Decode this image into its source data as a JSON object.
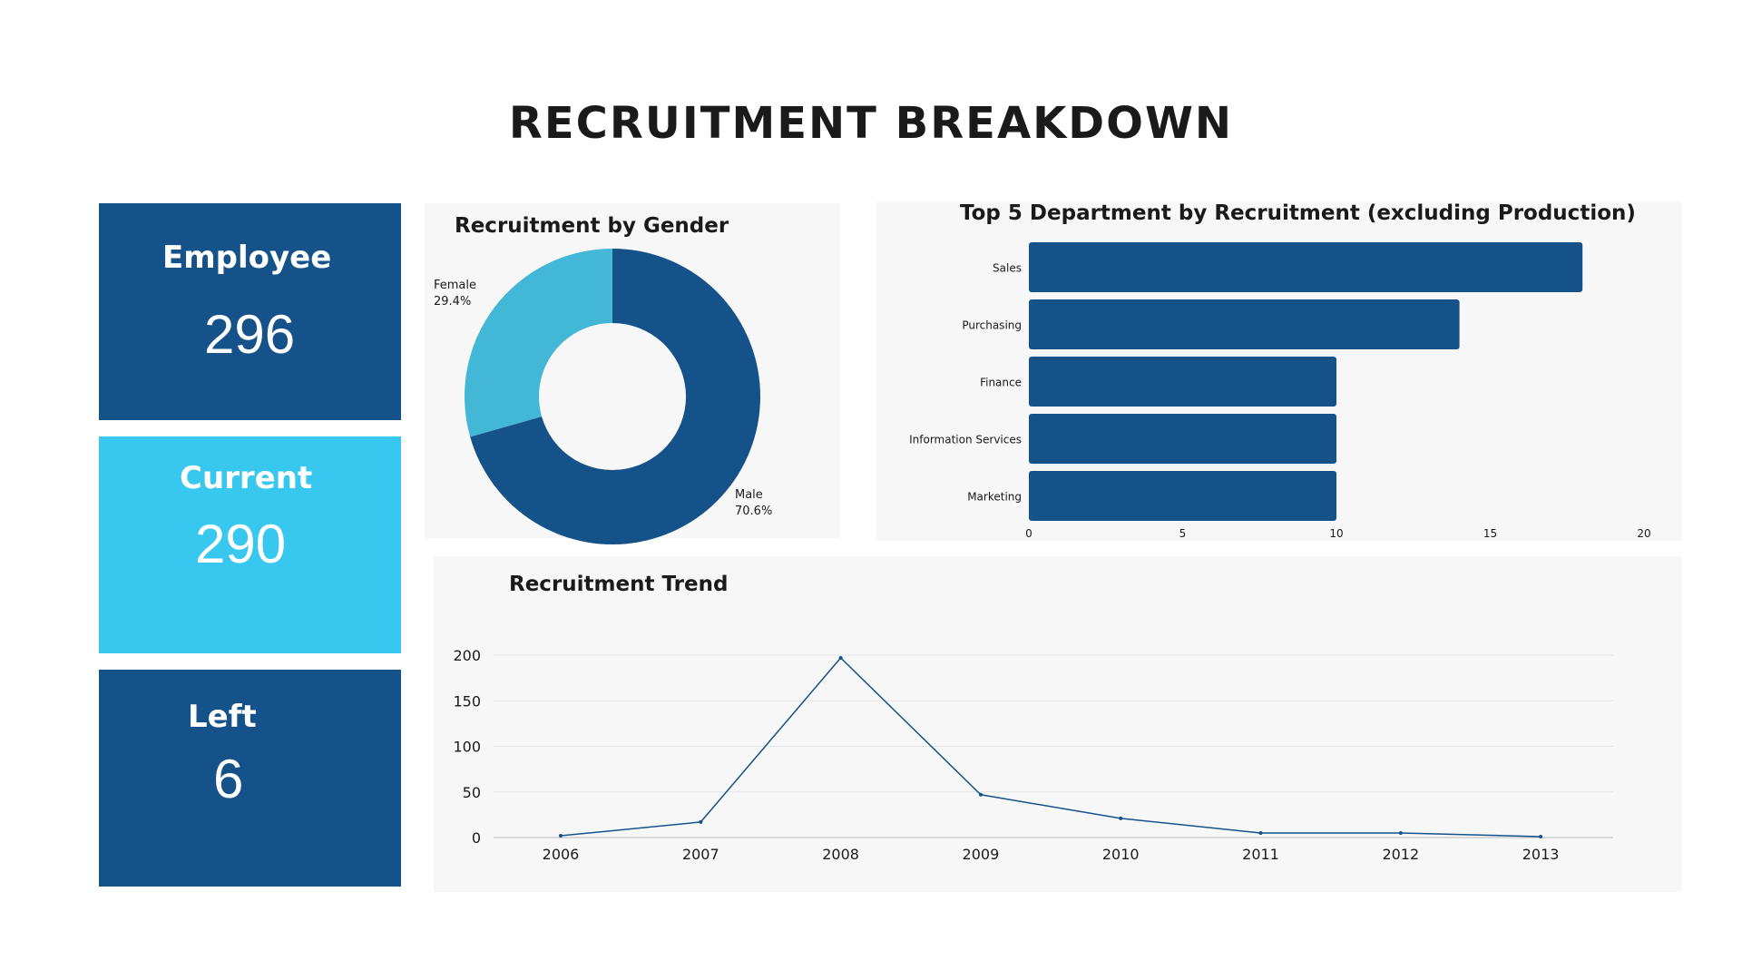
{
  "title": "RECRUITMENT BREAKDOWN",
  "kpis": {
    "employee": {
      "label": "Employee",
      "value": "296"
    },
    "current": {
      "label": "Current",
      "value": "290"
    },
    "left": {
      "label": "Left",
      "value": "6"
    }
  },
  "colors": {
    "dark_blue": "#155289",
    "light_blue": "#38c7ee",
    "donut_light": "#42b7d6",
    "panel_bg": "#f7f7f7"
  },
  "chart_data": [
    {
      "type": "pie",
      "title": "Recruitment  by Gender",
      "donut": true,
      "slices": [
        {
          "label": "Female",
          "value": 29.4,
          "display": "29.4%"
        },
        {
          "label": "Male",
          "value": 70.6,
          "display": "70.6%"
        }
      ]
    },
    {
      "type": "bar",
      "orientation": "horizontal",
      "title": "Top 5 Department by Recruitment (excluding Production)",
      "categories": [
        "Sales",
        "Purchasing",
        "Finance",
        "Information Services",
        "Marketing"
      ],
      "values": [
        18,
        14,
        10,
        10,
        10
      ],
      "xlim": [
        0,
        20
      ],
      "xticks": [
        "0",
        "5",
        "10",
        "15",
        "20"
      ],
      "grid": false
    },
    {
      "type": "line",
      "title": "Recruitment Trend",
      "x": [
        "2006",
        "2007",
        "2008",
        "2009",
        "2010",
        "2011",
        "2012",
        "2013"
      ],
      "values": [
        2,
        17,
        197,
        47,
        21,
        5,
        5,
        1
      ],
      "ylim": [
        0,
        200
      ],
      "yticks": [
        "0",
        "50",
        "100",
        "150",
        "200"
      ],
      "grid": true
    }
  ]
}
